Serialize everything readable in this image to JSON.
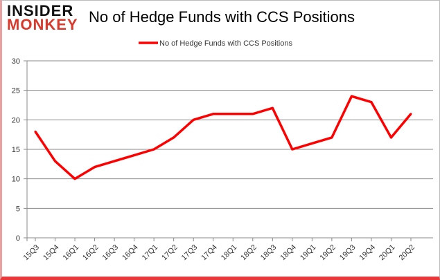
{
  "logo": {
    "line1": "INSIDER",
    "line2": "MONKEY"
  },
  "chart_data": {
    "type": "line",
    "title": "No of Hedge Funds with CCS Positions",
    "categories": [
      "15Q3",
      "15Q4",
      "16Q1",
      "16Q2",
      "16Q3",
      "16Q4",
      "17Q1",
      "17Q2",
      "17Q3",
      "17Q4",
      "18Q1",
      "18Q2",
      "18Q3",
      "18Q4",
      "19Q1",
      "19Q2",
      "19Q3",
      "19Q4",
      "20Q1",
      "20Q2"
    ],
    "series": [
      {
        "name": "No of Hedge Funds with CCS Positions",
        "color": "#ff0000",
        "values": [
          18,
          13,
          10,
          12,
          13,
          14,
          15,
          17,
          20,
          21,
          21,
          21,
          22,
          15,
          16,
          17,
          24,
          23,
          17,
          21
        ]
      }
    ],
    "ylim": [
      0,
      30
    ],
    "yticks": [
      0,
      5,
      10,
      15,
      20,
      25,
      30
    ],
    "grid": true,
    "legend": "top-center"
  }
}
